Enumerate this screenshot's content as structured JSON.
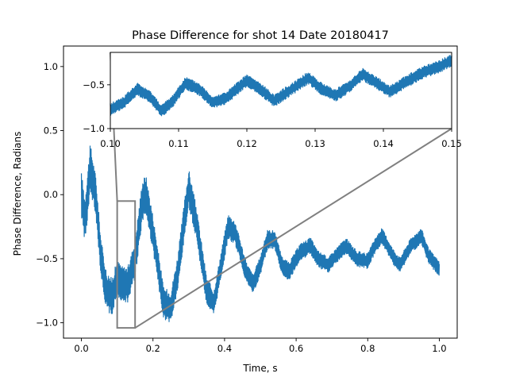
{
  "chart_data": {
    "type": "line",
    "title": "Phase Difference for shot 14 Date 20180417",
    "xlabel": "Time, s",
    "ylabel": "Phase Difference, Radians",
    "xlim": [
      -0.05,
      1.05
    ],
    "ylim": [
      -1.12,
      1.16
    ],
    "xticks": [
      0.0,
      0.2,
      0.4,
      0.6,
      0.8,
      1.0
    ],
    "xtick_labels": [
      "0.0",
      "0.2",
      "0.4",
      "0.6",
      "0.8",
      "1.0"
    ],
    "yticks": [
      -1.0,
      -0.5,
      0.0,
      0.5,
      1.0
    ],
    "ytick_labels": [
      "−1.0",
      "−0.5",
      "0.0",
      "0.5",
      "1.0"
    ],
    "series": [
      {
        "name": "phase difference",
        "color": "#1f77b4",
        "points": [
          {
            "x": 0.0,
            "y": 0.0,
            "spread": 0.35
          },
          {
            "x": 0.01,
            "y": -0.2,
            "spread": 0.35
          },
          {
            "x": 0.025,
            "y": 0.2,
            "spread": 0.4
          },
          {
            "x": 0.04,
            "y": 0.0,
            "spread": 0.3
          },
          {
            "x": 0.055,
            "y": -0.5,
            "spread": 0.3
          },
          {
            "x": 0.07,
            "y": -0.75,
            "spread": 0.3
          },
          {
            "x": 0.085,
            "y": -0.8,
            "spread": 0.3
          },
          {
            "x": 0.1,
            "y": -0.65,
            "spread": 0.28
          },
          {
            "x": 0.115,
            "y": -0.7,
            "spread": 0.28
          },
          {
            "x": 0.13,
            "y": -0.7,
            "spread": 0.28
          },
          {
            "x": 0.15,
            "y": -0.5,
            "spread": 0.3
          },
          {
            "x": 0.17,
            "y": -0.05,
            "spread": 0.32
          },
          {
            "x": 0.18,
            "y": 0.0,
            "spread": 0.32
          },
          {
            "x": 0.2,
            "y": -0.3,
            "spread": 0.28
          },
          {
            "x": 0.23,
            "y": -0.85,
            "spread": 0.25
          },
          {
            "x": 0.25,
            "y": -0.88,
            "spread": 0.25
          },
          {
            "x": 0.27,
            "y": -0.6,
            "spread": 0.28
          },
          {
            "x": 0.29,
            "y": -0.15,
            "spread": 0.3
          },
          {
            "x": 0.3,
            "y": 0.05,
            "spread": 0.3
          },
          {
            "x": 0.32,
            "y": -0.2,
            "spread": 0.25
          },
          {
            "x": 0.35,
            "y": -0.75,
            "spread": 0.22
          },
          {
            "x": 0.37,
            "y": -0.85,
            "spread": 0.2
          },
          {
            "x": 0.39,
            "y": -0.55,
            "spread": 0.2
          },
          {
            "x": 0.41,
            "y": -0.25,
            "spread": 0.2
          },
          {
            "x": 0.43,
            "y": -0.3,
            "spread": 0.18
          },
          {
            "x": 0.46,
            "y": -0.6,
            "spread": 0.16
          },
          {
            "x": 0.48,
            "y": -0.7,
            "spread": 0.15
          },
          {
            "x": 0.5,
            "y": -0.55,
            "spread": 0.15
          },
          {
            "x": 0.52,
            "y": -0.35,
            "spread": 0.15
          },
          {
            "x": 0.54,
            "y": -0.35,
            "spread": 0.14
          },
          {
            "x": 0.56,
            "y": -0.55,
            "spread": 0.14
          },
          {
            "x": 0.58,
            "y": -0.6,
            "spread": 0.14
          },
          {
            "x": 0.61,
            "y": -0.45,
            "spread": 0.13
          },
          {
            "x": 0.64,
            "y": -0.4,
            "spread": 0.13
          },
          {
            "x": 0.66,
            "y": -0.5,
            "spread": 0.13
          },
          {
            "x": 0.69,
            "y": -0.55,
            "spread": 0.12
          },
          {
            "x": 0.72,
            "y": -0.45,
            "spread": 0.12
          },
          {
            "x": 0.74,
            "y": -0.4,
            "spread": 0.12
          },
          {
            "x": 0.77,
            "y": -0.5,
            "spread": 0.12
          },
          {
            "x": 0.8,
            "y": -0.52,
            "spread": 0.12
          },
          {
            "x": 0.82,
            "y": -0.4,
            "spread": 0.12
          },
          {
            "x": 0.84,
            "y": -0.32,
            "spread": 0.12
          },
          {
            "x": 0.87,
            "y": -0.48,
            "spread": 0.12
          },
          {
            "x": 0.89,
            "y": -0.55,
            "spread": 0.12
          },
          {
            "x": 0.92,
            "y": -0.4,
            "spread": 0.12
          },
          {
            "x": 0.95,
            "y": -0.32,
            "spread": 0.12
          },
          {
            "x": 0.97,
            "y": -0.48,
            "spread": 0.12
          },
          {
            "x": 1.0,
            "y": -0.58,
            "spread": 0.12
          }
        ]
      }
    ],
    "inset": {
      "xlim": [
        0.1,
        0.15
      ],
      "ylim": [
        -1.0,
        -0.13
      ],
      "xticks": [
        0.1,
        0.11,
        0.12,
        0.13,
        0.14,
        0.15
      ],
      "xtick_labels": [
        "0.10",
        "0.11",
        "0.12",
        "0.13",
        "0.14",
        "0.15"
      ],
      "yticks": [
        -1.0,
        -0.5
      ],
      "ytick_labels": [
        "−1.0",
        "−0.5"
      ],
      "line_color": "#808080",
      "zoom_region": {
        "x0": 0.1,
        "x1": 0.15,
        "y0": -1.04,
        "y1": -0.05
      },
      "points": [
        {
          "x": 0.1,
          "y": -0.78,
          "spread": 0.14
        },
        {
          "x": 0.102,
          "y": -0.7,
          "spread": 0.14
        },
        {
          "x": 0.104,
          "y": -0.55,
          "spread": 0.14
        },
        {
          "x": 0.106,
          "y": -0.65,
          "spread": 0.14
        },
        {
          "x": 0.1075,
          "y": -0.8,
          "spread": 0.14
        },
        {
          "x": 0.109,
          "y": -0.7,
          "spread": 0.14
        },
        {
          "x": 0.111,
          "y": -0.48,
          "spread": 0.14
        },
        {
          "x": 0.113,
          "y": -0.55,
          "spread": 0.14
        },
        {
          "x": 0.115,
          "y": -0.7,
          "spread": 0.14
        },
        {
          "x": 0.117,
          "y": -0.65,
          "spread": 0.14
        },
        {
          "x": 0.12,
          "y": -0.45,
          "spread": 0.14
        },
        {
          "x": 0.122,
          "y": -0.55,
          "spread": 0.14
        },
        {
          "x": 0.124,
          "y": -0.68,
          "spread": 0.14
        },
        {
          "x": 0.126,
          "y": -0.58,
          "spread": 0.14
        },
        {
          "x": 0.129,
          "y": -0.42,
          "spread": 0.14
        },
        {
          "x": 0.131,
          "y": -0.55,
          "spread": 0.14
        },
        {
          "x": 0.133,
          "y": -0.62,
          "spread": 0.14
        },
        {
          "x": 0.135,
          "y": -0.52,
          "spread": 0.14
        },
        {
          "x": 0.137,
          "y": -0.38,
          "spread": 0.14
        },
        {
          "x": 0.139,
          "y": -0.48,
          "spread": 0.14
        },
        {
          "x": 0.141,
          "y": -0.58,
          "spread": 0.14
        },
        {
          "x": 0.143,
          "y": -0.48,
          "spread": 0.14
        },
        {
          "x": 0.146,
          "y": -0.35,
          "spread": 0.14
        },
        {
          "x": 0.148,
          "y": -0.3,
          "spread": 0.14
        },
        {
          "x": 0.15,
          "y": -0.22,
          "spread": 0.14
        }
      ]
    }
  }
}
